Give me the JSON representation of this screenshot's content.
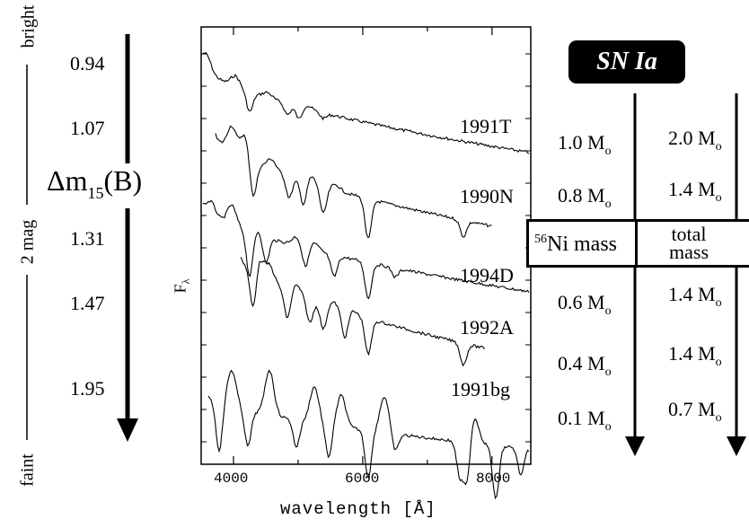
{
  "left_scale": {
    "bright_label": "bright",
    "faint_label": "faint",
    "range_label": "2 mag",
    "parameter_label_main": "Δm",
    "parameter_label_sub": "15",
    "parameter_label_end": "(B)",
    "values": [
      "0.94",
      "1.07",
      "1.31",
      "1.47",
      "1.95"
    ]
  },
  "spectra_panel": {
    "ylabel": "F",
    "ylabel_sub": "λ",
    "xlabel": "wavelength [Å]",
    "xtick_labels": [
      "4000",
      "6000",
      "8000"
    ],
    "xticks": [
      4000,
      6000,
      8000
    ],
    "xlim": [
      3500,
      8600
    ],
    "supernovae": [
      "1991T",
      "1990N",
      "1994D",
      "1992A",
      "1991bg"
    ]
  },
  "right_table": {
    "title": "SN Ia",
    "ni_mass_header_sup": "56",
    "ni_mass_header": "Ni mass",
    "total_mass_header_line1": "total",
    "total_mass_header_line2": "mass",
    "unit": "M",
    "unit_sub": "o",
    "ni_masses": [
      "1.0",
      "0.8",
      "0.6",
      "0.4",
      "0.1"
    ],
    "total_masses": [
      "2.0",
      "1.4",
      "1.4",
      "1.4",
      "0.7"
    ]
  }
}
